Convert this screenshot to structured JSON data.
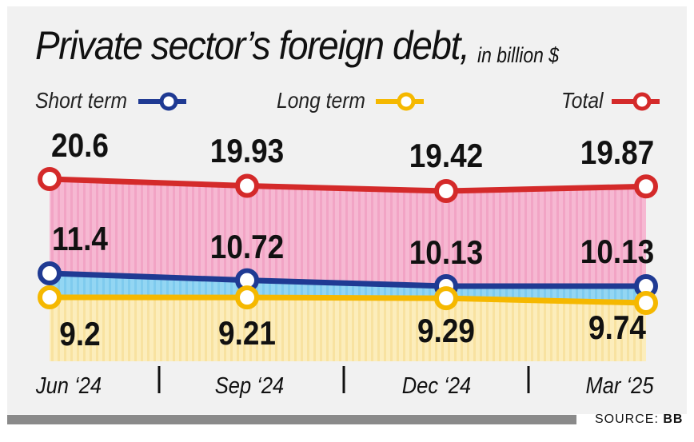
{
  "title": "Private sector’s foreign debt,",
  "subtitle": "in billion $",
  "source_label": "SOURCE:",
  "source_name": "BB",
  "legend": {
    "short": "Short term",
    "long": "Long term",
    "total": "Total"
  },
  "colors": {
    "short": "#1f3a93",
    "long": "#f5b800",
    "total": "#d42a2a",
    "total_fill": "#f5b4cf",
    "short_fill": "#8fd4f2",
    "long_fill": "#fbeab1"
  },
  "chart_data": {
    "type": "line",
    "title": "Private sector’s foreign debt, in billion $",
    "categories": [
      "Jun ‘24",
      "Sep ‘24",
      "Dec ‘24",
      "Mar ‘25"
    ],
    "series": [
      {
        "name": "Total",
        "values": [
          20.6,
          19.93,
          19.42,
          19.87
        ],
        "labels": [
          "20.6",
          "19.93",
          "19.42",
          "19.87"
        ]
      },
      {
        "name": "Short term",
        "values": [
          11.4,
          10.72,
          10.13,
          10.13
        ],
        "labels": [
          "11.4",
          "10.72",
          "10.13",
          "10.13"
        ]
      },
      {
        "name": "Long term",
        "values": [
          9.2,
          9.21,
          9.29,
          9.74
        ],
        "labels": [
          "9.2",
          "9.21",
          "9.29",
          "9.74"
        ]
      }
    ]
  }
}
